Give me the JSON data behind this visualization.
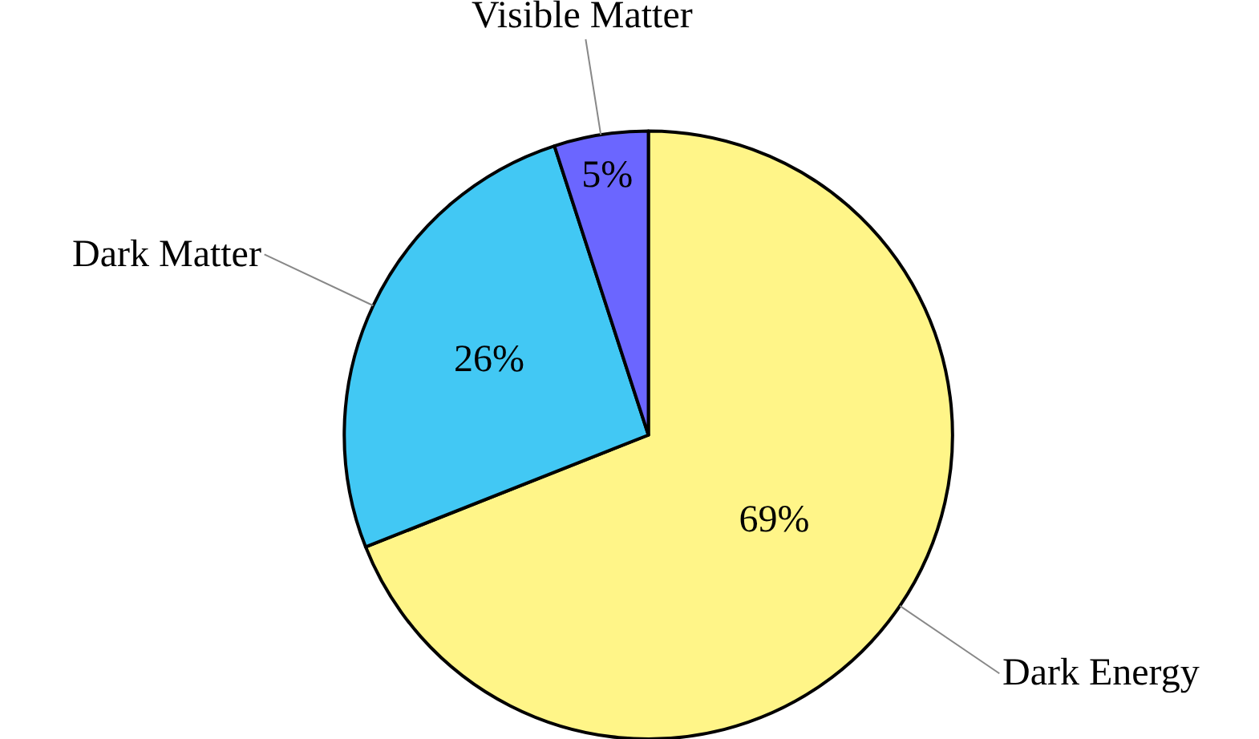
{
  "chart_data": {
    "type": "pie",
    "categories": [
      "Dark Energy",
      "Dark Matter",
      "Visible Matter"
    ],
    "values": [
      69,
      26,
      5
    ],
    "colors": [
      "#fff588",
      "#42c8f4",
      "#6b66ff"
    ],
    "value_labels": [
      "69%",
      "26%",
      "5%"
    ],
    "legend": false
  }
}
